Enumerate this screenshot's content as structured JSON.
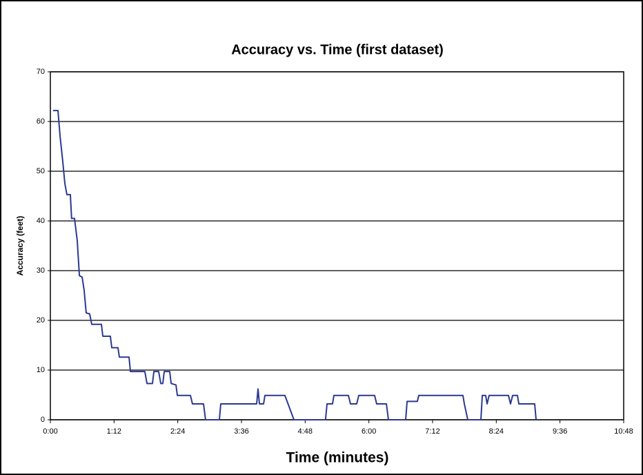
{
  "chart_data": {
    "type": "line",
    "title": "Accuracy vs. Time (first dataset)",
    "x_label": "Time (minutes)",
    "y_label": "Accuracy (feet)",
    "x": [
      3,
      8.6,
      11,
      14,
      16.4,
      18.7,
      22.6,
      24,
      27.3,
      30.4,
      32.8,
      35.9,
      38.2,
      40.5,
      44.4,
      46.8,
      57.7,
      59.3,
      67.8,
      69.4,
      76.4,
      78,
      88.9,
      90.5,
      106.8,
      109.2,
      115.4,
      117,
      122.4,
      124.8,
      127.1,
      128.7,
      134.9,
      136.5,
      142,
      143.5,
      158.3,
      160.6,
      173.1,
      175.4,
      191,
      192.6,
      233.2,
      234.7,
      236.3,
      241,
      242.5,
      265.1,
      275.3,
      311,
      312.7,
      318.9,
      320.5,
      336.9,
      339.2,
      346.2,
      348.6,
      366.5,
      368.8,
      379.8,
      382.1,
      401.6,
      403.2,
      414.8,
      416.4,
      466.3,
      467.9,
      471.8,
      486.6,
      488.2,
      492,
      493.6,
      495.9,
      517.8,
      520.1,
      522.5,
      527.9,
      529.5,
      547.4,
      549
    ],
    "series": [
      {
        "name": "Accuracy",
        "color": "#2b3990",
        "values": [
          62.2,
          62.2,
          57,
          52,
          47.5,
          45.3,
          45.3,
          40.5,
          40.5,
          36,
          29,
          28.7,
          26,
          21.5,
          21.3,
          19.2,
          19.2,
          16.8,
          16.8,
          14.5,
          14.5,
          12.6,
          12.6,
          9.7,
          9.7,
          7.3,
          7.3,
          9.7,
          9.7,
          7.3,
          7.3,
          9.7,
          9.7,
          7.3,
          7,
          4.9,
          4.9,
          3.2,
          3.2,
          0,
          0,
          3.2,
          3.2,
          6.2,
          3.2,
          3.2,
          4.9,
          4.9,
          0,
          0,
          3.2,
          3.2,
          4.9,
          4.9,
          3.2,
          3.2,
          4.9,
          4.9,
          3.2,
          3.2,
          0,
          0,
          3.7,
          3.7,
          4.9,
          4.9,
          3.2,
          0,
          0,
          4.9,
          4.9,
          3.2,
          4.9,
          4.9,
          3.2,
          4.9,
          4.9,
          3.2,
          3.2,
          0
        ]
      }
    ],
    "xlim": [
      0,
      648
    ],
    "xticks": [
      {
        "value": 0,
        "label": "0:00"
      },
      {
        "value": 72,
        "label": "1:12"
      },
      {
        "value": 144,
        "label": "2:24"
      },
      {
        "value": 216,
        "label": "3:36"
      },
      {
        "value": 288,
        "label": "4:48"
      },
      {
        "value": 360,
        "label": "6:00"
      },
      {
        "value": 432,
        "label": "7:12"
      },
      {
        "value": 504,
        "label": "8:24"
      },
      {
        "value": 576,
        "label": "9:36"
      },
      {
        "value": 648,
        "label": "10:48"
      }
    ],
    "ylim": [
      0,
      70
    ],
    "yticks": [
      0,
      10,
      20,
      30,
      40,
      50,
      60,
      70
    ],
    "grid": true
  }
}
